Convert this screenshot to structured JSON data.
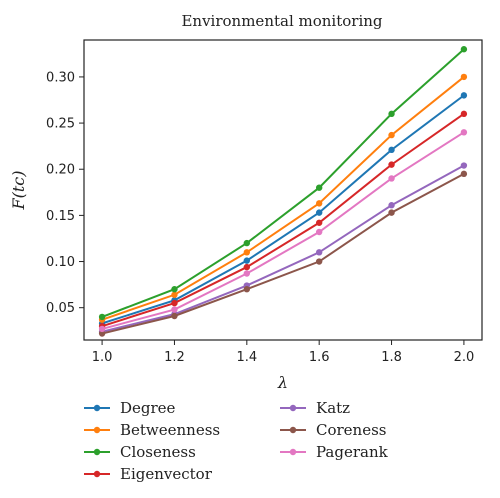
{
  "chart_data": {
    "type": "line",
    "title": "Environmental monitoring",
    "xlabel": "λ",
    "ylabel": "F(tc)",
    "x": [
      1.0,
      1.2,
      1.4,
      1.6,
      1.8,
      2.0
    ],
    "x_ticks": [
      "1.0",
      "1.2",
      "1.4",
      "1.6",
      "1.8",
      "2.0"
    ],
    "y_ticks": [
      "0.05",
      "0.10",
      "0.15",
      "0.20",
      "0.25",
      "0.30"
    ],
    "y_tick_values": [
      0.05,
      0.1,
      0.15,
      0.2,
      0.25,
      0.3
    ],
    "xlim": [
      0.95,
      2.05
    ],
    "ylim": [
      0.015,
      0.34
    ],
    "grid": false,
    "legend_position": "below, two columns",
    "series": [
      {
        "name": "Degree",
        "color": "#1f77b4",
        "values": [
          0.033,
          0.058,
          0.101,
          0.153,
          0.221,
          0.28
        ]
      },
      {
        "name": "Betweenness",
        "color": "#ff7f0e",
        "values": [
          0.037,
          0.064,
          0.11,
          0.163,
          0.237,
          0.3
        ]
      },
      {
        "name": "Closeness",
        "color": "#2ca02c",
        "values": [
          0.04,
          0.07,
          0.12,
          0.18,
          0.26,
          0.33
        ]
      },
      {
        "name": "Eigenvector",
        "color": "#d62728",
        "values": [
          0.03,
          0.055,
          0.094,
          0.142,
          0.205,
          0.26
        ]
      },
      {
        "name": "Katz",
        "color": "#9467bd",
        "values": [
          0.024,
          0.043,
          0.074,
          0.11,
          0.161,
          0.204
        ]
      },
      {
        "name": "Coreness",
        "color": "#8c564b",
        "values": [
          0.022,
          0.041,
          0.07,
          0.1,
          0.153,
          0.195
        ]
      },
      {
        "name": "Pagerank",
        "color": "#e377c2",
        "values": [
          0.027,
          0.048,
          0.087,
          0.132,
          0.19,
          0.24
        ]
      }
    ]
  }
}
